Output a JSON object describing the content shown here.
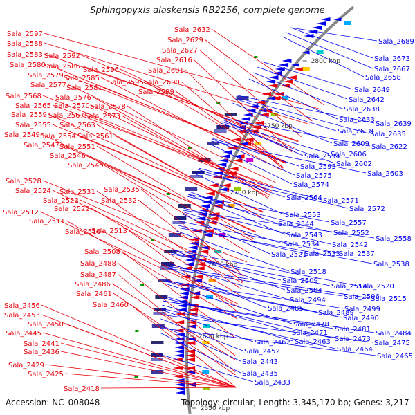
{
  "title": "Sphingopyxis alaskensis RB2256, complete genome",
  "accession": "Accession: NC_008048",
  "topology": "Topology: circular; Length: 3,345,170 bp; Genes: 3,217",
  "colors": {
    "forward": "#e8000b",
    "reverse": "#0000ee",
    "backbone": "#888888",
    "tick": "#009900"
  },
  "scale_labels": [
    "2800 kbp",
    "2750 kbp",
    "2700 kbp",
    "2650 kbp",
    "2600 kbp",
    "2550 kbp"
  ],
  "left_labels": [
    "Sala_2597",
    "Sala_2588",
    "Sala_2583",
    "Sala_2592",
    "Sala_2580",
    "Sala_2586",
    "Sala_2596",
    "Sala_2579",
    "Sala_2585",
    "Sala_2577",
    "Sala_2581",
    "Sala_2595",
    "Sala_2600",
    "Sala_2568",
    "Sala_2576",
    "Sala_2599",
    "Sala_2565",
    "Sala_2570",
    "Sala_2578",
    "Sala_2559",
    "Sala_2567",
    "Sala_2573",
    "Sala_2555",
    "Sala_2563",
    "Sala_2549",
    "Sala_2554",
    "Sala_2561",
    "Sala_2547",
    "Sala_2551",
    "Sala_2546",
    "Sala_2545",
    "Sala_2528",
    "Sala_2535",
    "Sala_2524",
    "Sala_2531",
    "Sala_2523",
    "Sala_2532",
    "Sala_2522",
    "Sala_2512",
    "Sala_2511",
    "Sala_2510",
    "Sala_2513",
    "Sala_2508",
    "Sala_2488",
    "Sala_2487",
    "Sala_2486",
    "Sala_2461",
    "Sala_2460",
    "Sala_2456",
    "Sala_2453",
    "Sala_2450",
    "Sala_2445",
    "Sala_2441",
    "Sala_2436",
    "Sala_2429",
    "Sala_2425",
    "Sala_2418"
  ],
  "center_labels": [
    "Sala_2632",
    "Sala_2629",
    "Sala_2627",
    "Sala_2616",
    "Sala_2601"
  ],
  "right_labels": [
    "Sala_2689",
    "Sala_2673",
    "Sala_2667",
    "Sala_2658",
    "Sala_2649",
    "Sala_2642",
    "Sala_2638",
    "Sala_2633",
    "Sala_2639",
    "Sala_2618",
    "Sala_2635",
    "Sala_2609",
    "Sala_2622",
    "Sala_2606",
    "Sala_2594",
    "Sala_2602",
    "Sala_2593",
    "Sala_2603",
    "Sala_2575",
    "Sala_2574",
    "Sala_2564",
    "Sala_2571",
    "Sala_2572",
    "Sala_2553",
    "Sala_2557",
    "Sala_2544",
    "Sala_2552",
    "Sala_2543",
    "Sala_2558",
    "Sala_2534",
    "Sala_2542",
    "Sala_2521",
    "Sala_2533",
    "Sala_2537",
    "Sala_2538",
    "Sala_2518",
    "Sala_2509",
    "Sala_2514",
    "Sala_2520",
    "Sala_2504",
    "Sala_2506",
    "Sala_2515",
    "Sala_2494",
    "Sala_2485",
    "Sala_2499",
    "Sala_2489",
    "Sala_2490",
    "Sala_2478",
    "Sala_2481",
    "Sala_2484",
    "Sala_2471",
    "Sala_2473",
    "Sala_2475",
    "Sala_2462",
    "Sala_2463",
    "Sala_2464",
    "Sala_2465",
    "Sala_2452",
    "Sala_2443",
    "Sala_2435",
    "Sala_2433"
  ]
}
